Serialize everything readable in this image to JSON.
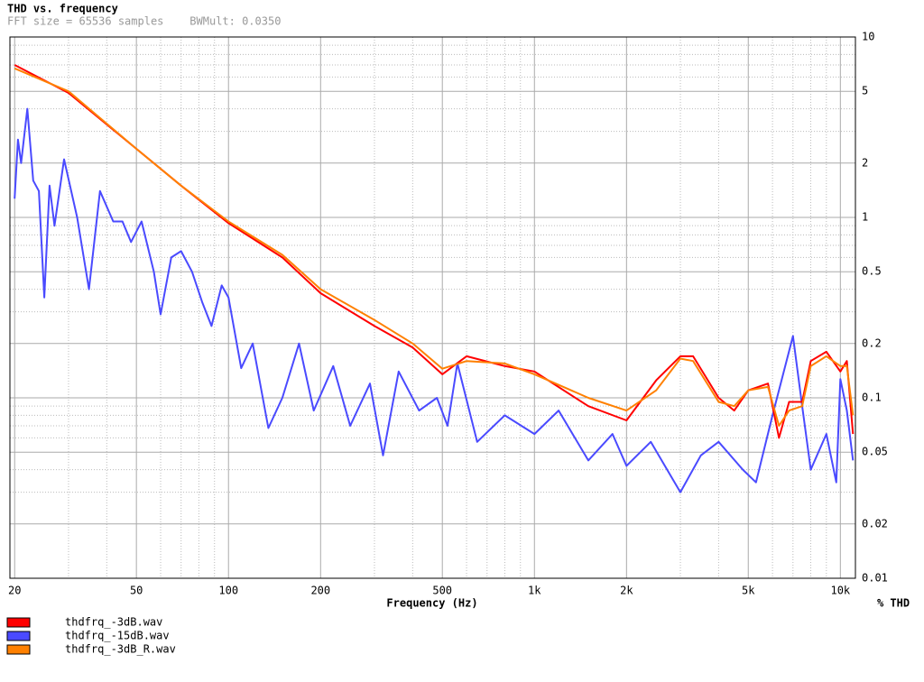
{
  "chart_data": {
    "type": "line",
    "title": "THD vs. frequency",
    "subtitle": "FFT size = 65536 samples    BWMult: 0.0350",
    "xlabel": "Frequency (Hz)",
    "ylabel": "% THD",
    "xscale": "log",
    "yscale": "log",
    "grid": true,
    "legend": "bottom-left",
    "xlim": [
      19.3,
      11200
    ],
    "ylim": [
      0.01,
      10
    ],
    "xticks": [
      20,
      50,
      100,
      200,
      500,
      {
        "value": 1000,
        "label": "1k"
      },
      {
        "value": 2000,
        "label": "2k"
      },
      {
        "value": 5000,
        "label": "5k"
      },
      {
        "value": 10000,
        "label": "10k"
      }
    ],
    "xminorticks": [
      30,
      40,
      60,
      70,
      80,
      90,
      300,
      400,
      600,
      700,
      800,
      900,
      3000,
      4000,
      6000,
      7000,
      8000,
      9000
    ],
    "yticks": [
      10,
      5,
      2,
      1,
      0.5,
      0.2,
      0.1,
      0.05,
      0.02,
      0.01
    ],
    "yminorticks": [
      9,
      8,
      7,
      6,
      4,
      3,
      0.9,
      0.8,
      0.7,
      0.6,
      0.4,
      0.3,
      0.09,
      0.08,
      0.07,
      0.06,
      0.04,
      0.03
    ],
    "series": [
      {
        "name": "thdfrq_-3dB.wav",
        "color": "#ff0000",
        "x": [
          20,
          30,
          50,
          70,
          100,
          150,
          200,
          300,
          400,
          500,
          600,
          800,
          1000,
          1500,
          2000,
          2500,
          3000,
          3300,
          4000,
          4500,
          5000,
          5800,
          6300,
          6800,
          7500,
          8000,
          9000,
          10000,
          10500,
          11000
        ],
        "values": [
          7.0,
          4.9,
          2.4,
          1.5,
          0.93,
          0.6,
          0.38,
          0.25,
          0.19,
          0.135,
          0.17,
          0.15,
          0.14,
          0.09,
          0.075,
          0.125,
          0.17,
          0.17,
          0.1,
          0.085,
          0.11,
          0.12,
          0.06,
          0.095,
          0.095,
          0.16,
          0.18,
          0.14,
          0.16,
          0.063
        ]
      },
      {
        "name": "thdfrq_-15dB.wav",
        "color": "#4a4aff",
        "x": [
          20,
          20.5,
          21,
          22,
          23,
          24,
          25,
          26,
          27,
          29,
          32,
          35,
          38,
          42,
          45,
          48,
          52,
          57,
          60,
          65,
          70,
          76,
          82,
          88,
          95,
          100,
          110,
          120,
          135,
          150,
          170,
          190,
          220,
          250,
          290,
          320,
          360,
          420,
          480,
          520,
          560,
          650,
          800,
          1000,
          1200,
          1500,
          1800,
          2000,
          2400,
          3000,
          3500,
          4000,
          4800,
          5300,
          6000,
          7000,
          7500,
          8000,
          9000,
          9700,
          10000,
          10500,
          11000
        ],
        "values": [
          1.27,
          2.7,
          2.0,
          4.0,
          1.6,
          1.4,
          0.36,
          1.5,
          0.9,
          2.1,
          1.0,
          0.4,
          1.4,
          0.95,
          0.95,
          0.73,
          0.95,
          0.5,
          0.29,
          0.6,
          0.65,
          0.5,
          0.34,
          0.25,
          0.42,
          0.36,
          0.146,
          0.2,
          0.068,
          0.1,
          0.2,
          0.085,
          0.15,
          0.07,
          0.12,
          0.048,
          0.14,
          0.085,
          0.1,
          0.07,
          0.155,
          0.057,
          0.08,
          0.063,
          0.085,
          0.045,
          0.063,
          0.042,
          0.057,
          0.03,
          0.048,
          0.057,
          0.04,
          0.034,
          0.08,
          0.22,
          0.09,
          0.04,
          0.063,
          0.034,
          0.127,
          0.085,
          0.045
        ]
      },
      {
        "name": "thdfrq_-3dB_R.wav",
        "color": "#ff8000",
        "x": [
          20,
          30,
          50,
          70,
          100,
          150,
          200,
          300,
          400,
          500,
          600,
          800,
          1000,
          1500,
          2000,
          2500,
          3000,
          3300,
          4000,
          4500,
          5000,
          5800,
          6300,
          6800,
          7500,
          8000,
          9000,
          10000,
          10500,
          11000
        ],
        "values": [
          6.7,
          5.0,
          2.4,
          1.5,
          0.95,
          0.62,
          0.4,
          0.27,
          0.2,
          0.145,
          0.16,
          0.155,
          0.135,
          0.1,
          0.085,
          0.11,
          0.165,
          0.16,
          0.095,
          0.09,
          0.11,
          0.115,
          0.07,
          0.085,
          0.09,
          0.15,
          0.17,
          0.15,
          0.15,
          0.08
        ]
      }
    ]
  }
}
